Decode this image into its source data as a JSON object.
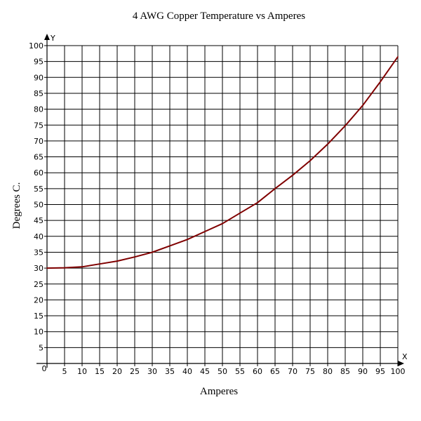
{
  "chart_data": {
    "type": "line",
    "title": "4 AWG Copper Temperature vs Amperes",
    "xlabel": "Amperes",
    "ylabel": "Degrees C.",
    "x_axis_marker": "X",
    "y_axis_marker": "Y",
    "origin_label": "0",
    "xlim": [
      0,
      100
    ],
    "ylim": [
      0,
      100
    ],
    "x_ticks": [
      5,
      10,
      15,
      20,
      25,
      30,
      35,
      40,
      45,
      50,
      55,
      60,
      65,
      70,
      75,
      80,
      85,
      90,
      95,
      100
    ],
    "y_ticks": [
      5,
      10,
      15,
      20,
      25,
      30,
      35,
      40,
      45,
      50,
      55,
      60,
      65,
      70,
      75,
      80,
      85,
      90,
      95,
      100
    ],
    "grid": true,
    "legend": "none",
    "series": [
      {
        "color": "#800000",
        "x": [
          0,
          5,
          10,
          15,
          20,
          25,
          30,
          35,
          40,
          45,
          50,
          55,
          60,
          65,
          70,
          75,
          80,
          85,
          90,
          95,
          100
        ],
        "y": [
          30,
          30.1,
          30.4,
          31.3,
          32.2,
          33.5,
          35,
          37,
          39,
          41.5,
          44,
          47.3,
          50.6,
          55,
          59.2,
          63.8,
          69,
          74.8,
          81.2,
          88.6,
          96.5
        ]
      }
    ]
  }
}
